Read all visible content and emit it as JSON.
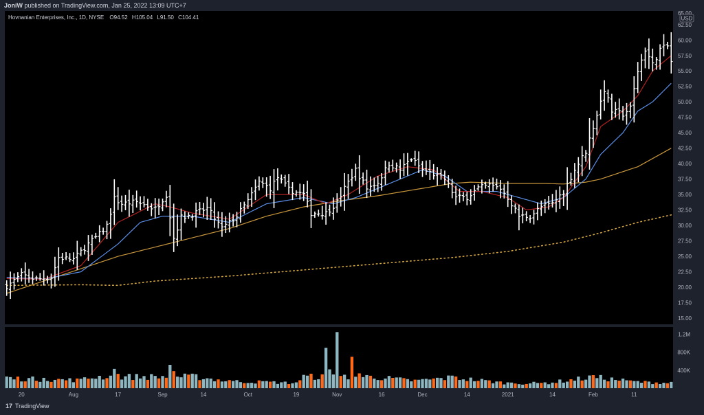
{
  "header": {
    "publisher": "JoniW",
    "published_text": "published on TradingView.com, Jan 25, 2022 13:09 UTC+7"
  },
  "legend": {
    "symbol": "Hovnanian Enterprises, Inc., 1D, NYSE",
    "open_label": "O",
    "open": "94.52",
    "high_label": "H",
    "high": "105.04",
    "low_label": "L",
    "low": "91.50",
    "close_label": "C",
    "close": "104.41"
  },
  "footer": {
    "brand": "TradingView",
    "logo_glyph": "17"
  },
  "colors": {
    "background": "#000000",
    "panel": "#1e222d",
    "bar": "#ffffff",
    "ema_short": "#b22222",
    "ema_mid": "#5b8fe8",
    "sma_long": "#c9973a",
    "sma_200": "#d4a640",
    "vol_up": "#8fb7c2",
    "vol_down": "#ff6a1a"
  },
  "chart_data": {
    "type": "bar",
    "currency": "USD",
    "price_axis": {
      "ticks": [
        15.0,
        17.5,
        20.0,
        22.5,
        25.0,
        27.5,
        30.0,
        32.5,
        35.0,
        37.5,
        40.0,
        42.5,
        45.0,
        47.5,
        50.0,
        52.5,
        55.0,
        57.5,
        60.0,
        62.5
      ],
      "top_label_partial": "65.00",
      "ylim": [
        14.0,
        64.7
      ]
    },
    "volume_axis": {
      "ticks": [
        "400K",
        "800K",
        "1.2M"
      ],
      "values": [
        400000,
        800000,
        1200000
      ]
    },
    "x_tick_labels": [
      "20",
      "Aug",
      "17",
      "Sep",
      "14",
      "Oct",
      "19",
      "Nov",
      "16",
      "Dec",
      "14",
      "2021",
      "14",
      "Feb",
      "11"
    ],
    "x_tick_bar_index": [
      4,
      18,
      30,
      42,
      53,
      65,
      78,
      89,
      101,
      112,
      124,
      135,
      147,
      158,
      169
    ],
    "bar_count": 180,
    "price_anchors": [
      [
        0,
        20.2
      ],
      [
        4,
        22.0
      ],
      [
        8,
        21.3
      ],
      [
        12,
        21.6
      ],
      [
        14,
        24.8
      ],
      [
        18,
        24.5
      ],
      [
        22,
        27.0
      ],
      [
        25,
        28.6
      ],
      [
        27,
        30.0
      ],
      [
        29,
        34.3
      ],
      [
        31,
        33.5
      ],
      [
        35,
        33.8
      ],
      [
        40,
        32.7
      ],
      [
        43,
        35.0
      ],
      [
        45,
        28.0
      ],
      [
        47,
        31.3
      ],
      [
        51,
        32.0
      ],
      [
        54,
        32.8
      ],
      [
        58,
        29.5
      ],
      [
        62,
        31.5
      ],
      [
        65,
        34.0
      ],
      [
        68,
        37.0
      ],
      [
        71,
        36.0
      ],
      [
        73,
        37.8
      ],
      [
        76,
        35.8
      ],
      [
        80,
        35.0
      ],
      [
        82,
        32.0
      ],
      [
        86,
        32.0
      ],
      [
        89,
        33.8
      ],
      [
        91,
        36.0
      ],
      [
        94,
        39.0
      ],
      [
        97,
        36.0
      ],
      [
        100,
        37.0
      ],
      [
        103,
        40.0
      ],
      [
        106,
        39.0
      ],
      [
        109,
        40.8
      ],
      [
        112,
        39.0
      ],
      [
        115,
        38.3
      ],
      [
        118,
        37.5
      ],
      [
        121,
        34.5
      ],
      [
        124,
        34.6
      ],
      [
        127,
        36.0
      ],
      [
        130,
        36.5
      ],
      [
        133,
        36.0
      ],
      [
        135,
        34.5
      ],
      [
        138,
        31.5
      ],
      [
        141,
        31.5
      ],
      [
        144,
        33.0
      ],
      [
        147,
        33.5
      ],
      [
        150,
        35.5
      ],
      [
        153,
        39.0
      ],
      [
        156,
        42.0
      ],
      [
        159,
        48.0
      ],
      [
        161,
        52.0
      ],
      [
        163,
        48.5
      ],
      [
        166,
        48.0
      ],
      [
        168,
        49.0
      ],
      [
        170,
        55.0
      ],
      [
        172,
        58.5
      ],
      [
        174,
        56.0
      ],
      [
        176,
        58.5
      ],
      [
        178,
        59.0
      ],
      [
        179,
        56.5
      ]
    ],
    "ema_short_anchors": [
      [
        0,
        21.4
      ],
      [
        10,
        21.3
      ],
      [
        20,
        23.5
      ],
      [
        30,
        30.5
      ],
      [
        40,
        33.5
      ],
      [
        44,
        33.0
      ],
      [
        50,
        32.0
      ],
      [
        60,
        31.0
      ],
      [
        70,
        35.0
      ],
      [
        80,
        35.0
      ],
      [
        86,
        33.5
      ],
      [
        92,
        35.0
      ],
      [
        100,
        38.0
      ],
      [
        108,
        39.5
      ],
      [
        115,
        39.0
      ],
      [
        122,
        35.5
      ],
      [
        128,
        35.5
      ],
      [
        135,
        34.5
      ],
      [
        140,
        32.5
      ],
      [
        146,
        33.0
      ],
      [
        150,
        34.5
      ],
      [
        156,
        39.5
      ],
      [
        160,
        46.0
      ],
      [
        166,
        48.5
      ],
      [
        170,
        51.0
      ],
      [
        174,
        55.0
      ],
      [
        179,
        57.5
      ]
    ],
    "ema_mid_anchors": [
      [
        0,
        21.6
      ],
      [
        10,
        21.3
      ],
      [
        20,
        22.5
      ],
      [
        30,
        27.0
      ],
      [
        36,
        30.5
      ],
      [
        42,
        31.5
      ],
      [
        50,
        31.5
      ],
      [
        60,
        30.5
      ],
      [
        70,
        33.5
      ],
      [
        80,
        34.5
      ],
      [
        88,
        33.5
      ],
      [
        94,
        34.5
      ],
      [
        100,
        36.0
      ],
      [
        106,
        37.5
      ],
      [
        112,
        39.0
      ],
      [
        118,
        38.0
      ],
      [
        124,
        35.5
      ],
      [
        132,
        35.5
      ],
      [
        138,
        34.5
      ],
      [
        144,
        33.5
      ],
      [
        150,
        34.5
      ],
      [
        156,
        37.5
      ],
      [
        160,
        41.5
      ],
      [
        166,
        45.0
      ],
      [
        170,
        48.5
      ],
      [
        174,
        50.0
      ],
      [
        179,
        53.0
      ]
    ],
    "sma_long_anchors": [
      [
        0,
        19.0
      ],
      [
        10,
        21.0
      ],
      [
        20,
        23.0
      ],
      [
        30,
        25.0
      ],
      [
        40,
        26.5
      ],
      [
        50,
        28.0
      ],
      [
        60,
        29.5
      ],
      [
        70,
        31.5
      ],
      [
        80,
        33.0
      ],
      [
        90,
        34.0
      ],
      [
        100,
        34.8
      ],
      [
        110,
        35.8
      ],
      [
        120,
        36.8
      ],
      [
        125,
        37.0
      ],
      [
        135,
        36.8
      ],
      [
        145,
        36.8
      ],
      [
        150,
        36.7
      ],
      [
        156,
        37.0
      ],
      [
        160,
        37.5
      ],
      [
        170,
        39.5
      ],
      [
        179,
        42.5
      ]
    ],
    "sma_200_anchors": [
      [
        0,
        20.3
      ],
      [
        20,
        20.4
      ],
      [
        30,
        20.3
      ],
      [
        40,
        21.0
      ],
      [
        60,
        21.8
      ],
      [
        80,
        22.8
      ],
      [
        100,
        23.8
      ],
      [
        120,
        24.8
      ],
      [
        135,
        25.8
      ],
      [
        150,
        27.3
      ],
      [
        160,
        28.8
      ],
      [
        170,
        30.5
      ],
      [
        179,
        31.7
      ]
    ],
    "volume_down_bars": [
      3,
      5,
      8,
      12,
      14,
      16,
      19,
      22,
      27,
      30,
      34,
      38,
      41,
      43,
      45,
      49,
      52,
      57,
      60,
      64,
      68,
      71,
      76,
      79,
      82,
      85,
      90,
      93,
      95,
      98,
      101,
      104,
      107,
      110,
      115,
      118,
      121,
      124,
      127,
      130,
      133,
      137,
      140,
      144,
      148,
      152,
      155,
      158,
      162,
      165,
      168,
      172,
      175,
      178
    ],
    "volume_peaks": [
      [
        0,
        260000
      ],
      [
        10,
        230000
      ],
      [
        20,
        210000
      ],
      [
        29,
        430000
      ],
      [
        30,
        320000
      ],
      [
        44,
        520000
      ],
      [
        45,
        380000
      ],
      [
        60,
        180000
      ],
      [
        70,
        160000
      ],
      [
        78,
        130000
      ],
      [
        86,
        900000
      ],
      [
        87,
        420000
      ],
      [
        89,
        1250000
      ],
      [
        91,
        300000
      ],
      [
        93,
        700000
      ],
      [
        95,
        330000
      ],
      [
        110,
        190000
      ],
      [
        120,
        280000
      ],
      [
        135,
        130000
      ],
      [
        145,
        130000
      ],
      [
        158,
        290000
      ],
      [
        170,
        160000
      ],
      [
        179,
        140000
      ]
    ]
  }
}
